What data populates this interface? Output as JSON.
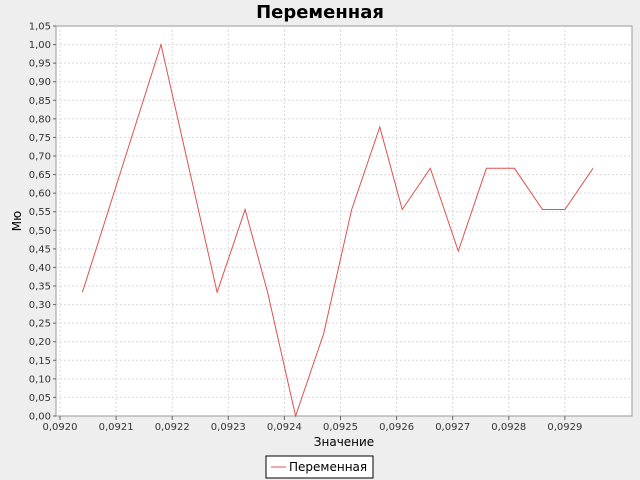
{
  "chart_data": {
    "type": "line",
    "title": "Переменная",
    "xlabel": "Значение",
    "ylabel": "Мю",
    "xlim": [
      0.092,
      0.093
    ],
    "ylim": [
      0,
      1.05
    ],
    "grid": true,
    "legend_position": "bottom",
    "x_ticks": [
      "0,0920",
      "0,0921",
      "0,0922",
      "0,0923",
      "0,0924",
      "0,0925",
      "0,0926",
      "0,0927",
      "0,0928",
      "0,0929"
    ],
    "x_tick_values": [
      0.092,
      0.0921,
      0.0922,
      0.0923,
      0.0924,
      0.0925,
      0.0926,
      0.0927,
      0.0928,
      0.0929
    ],
    "y_ticks": [
      "0,00",
      "0,05",
      "0,10",
      "0,15",
      "0,20",
      "0,25",
      "0,30",
      "0,35",
      "0,40",
      "0,45",
      "0,50",
      "0,55",
      "0,60",
      "0,65",
      "0,70",
      "0,75",
      "0,80",
      "0,85",
      "0,90",
      "0,95",
      "1,00",
      "1,05"
    ],
    "y_tick_values": [
      0,
      0.05,
      0.1,
      0.15,
      0.2,
      0.25,
      0.3,
      0.35,
      0.4,
      0.45,
      0.5,
      0.55,
      0.6,
      0.65,
      0.7,
      0.75,
      0.8,
      0.85,
      0.9,
      0.95,
      1.0,
      1.05
    ],
    "series": [
      {
        "name": "Переменная",
        "color": "#e05050",
        "x": [
          0.09204,
          0.09218,
          0.09228,
          0.09233,
          0.09237,
          0.09242,
          0.09247,
          0.09252,
          0.09257,
          0.09261,
          0.09266,
          0.09271,
          0.09276,
          0.09281,
          0.09286,
          0.0929,
          0.09295
        ],
        "y": [
          0.333,
          1.0,
          0.333,
          0.556,
          0.333,
          0.0,
          0.222,
          0.556,
          0.778,
          0.556,
          0.667,
          0.444,
          0.667,
          0.667,
          0.556,
          0.556,
          0.667
        ]
      }
    ]
  }
}
